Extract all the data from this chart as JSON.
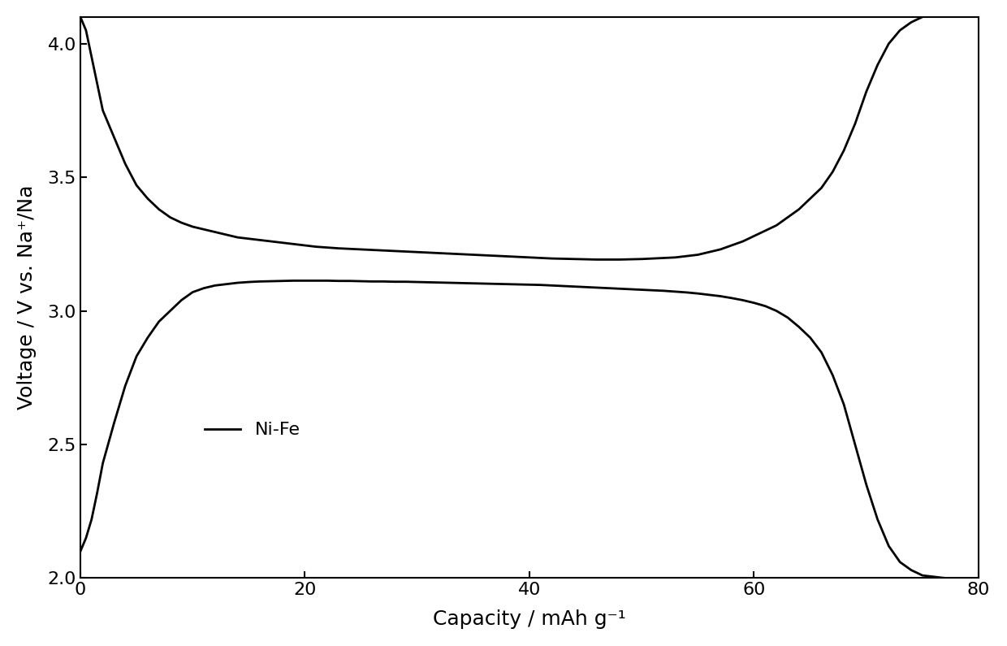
{
  "title": "",
  "xlabel": "Capacity / mAh g⁻¹",
  "ylabel": "Voltage / V vs. Na⁺/Na",
  "xlim": [
    0,
    80
  ],
  "ylim": [
    2.0,
    4.1
  ],
  "yticks": [
    2.0,
    2.5,
    3.0,
    3.5,
    4.0
  ],
  "xticks": [
    0,
    20,
    40,
    60,
    80
  ],
  "legend_label": "Ni-Fe",
  "line_color": "#000000",
  "line_width": 2.0,
  "background_color": "#ffffff",
  "charge_curve": {
    "x": [
      0,
      0.5,
      1,
      1.5,
      2,
      3,
      4,
      5,
      6,
      7,
      8,
      9,
      10,
      11,
      12,
      13,
      14,
      15,
      16,
      17,
      18,
      19,
      20,
      21,
      22,
      23,
      24,
      25,
      26,
      27,
      28,
      29,
      30,
      31,
      32,
      33,
      34,
      35,
      36,
      37,
      38,
      39,
      40,
      41,
      42,
      43,
      44,
      45,
      46,
      47,
      48,
      49,
      50,
      51,
      52,
      53,
      54,
      55,
      56,
      57,
      58,
      59,
      60,
      61,
      62,
      63,
      64,
      65,
      66,
      67,
      68,
      69,
      70,
      71,
      72,
      73,
      74,
      75,
      76,
      77,
      77.5
    ],
    "y": [
      4.1,
      4.05,
      3.95,
      3.85,
      3.75,
      3.65,
      3.55,
      3.47,
      3.42,
      3.38,
      3.35,
      3.33,
      3.315,
      3.305,
      3.295,
      3.285,
      3.275,
      3.27,
      3.265,
      3.26,
      3.255,
      3.25,
      3.245,
      3.24,
      3.237,
      3.234,
      3.232,
      3.23,
      3.228,
      3.226,
      3.224,
      3.222,
      3.22,
      3.218,
      3.216,
      3.214,
      3.212,
      3.21,
      3.208,
      3.206,
      3.204,
      3.202,
      3.2,
      3.198,
      3.196,
      3.195,
      3.194,
      3.193,
      3.192,
      3.192,
      3.192,
      3.193,
      3.194,
      3.196,
      3.198,
      3.2,
      3.205,
      3.21,
      3.22,
      3.23,
      3.245,
      3.26,
      3.28,
      3.3,
      3.32,
      3.35,
      3.38,
      3.42,
      3.46,
      3.52,
      3.6,
      3.7,
      3.82,
      3.92,
      4.0,
      4.05,
      4.08,
      4.1,
      4.11,
      4.11,
      4.11
    ]
  },
  "discharge_curve": {
    "x": [
      0,
      0.5,
      1,
      1.5,
      2,
      3,
      4,
      5,
      6,
      7,
      8,
      9,
      10,
      11,
      12,
      13,
      14,
      15,
      16,
      17,
      18,
      19,
      20,
      21,
      22,
      23,
      24,
      25,
      26,
      27,
      28,
      29,
      30,
      31,
      32,
      33,
      34,
      35,
      36,
      37,
      38,
      39,
      40,
      41,
      42,
      43,
      44,
      45,
      46,
      47,
      48,
      49,
      50,
      51,
      52,
      53,
      54,
      55,
      56,
      57,
      58,
      59,
      60,
      61,
      62,
      63,
      64,
      65,
      66,
      67,
      68,
      69,
      70,
      71,
      72,
      73,
      74,
      75,
      76,
      77,
      77.5
    ],
    "y": [
      2.1,
      2.15,
      2.22,
      2.32,
      2.43,
      2.58,
      2.72,
      2.83,
      2.9,
      2.96,
      3.0,
      3.04,
      3.07,
      3.085,
      3.095,
      3.1,
      3.105,
      3.108,
      3.11,
      3.111,
      3.112,
      3.113,
      3.113,
      3.113,
      3.113,
      3.112,
      3.112,
      3.111,
      3.11,
      3.11,
      3.109,
      3.109,
      3.108,
      3.107,
      3.106,
      3.105,
      3.104,
      3.103,
      3.102,
      3.101,
      3.1,
      3.099,
      3.098,
      3.097,
      3.095,
      3.093,
      3.091,
      3.089,
      3.087,
      3.085,
      3.083,
      3.081,
      3.079,
      3.077,
      3.075,
      3.072,
      3.069,
      3.065,
      3.06,
      3.055,
      3.048,
      3.04,
      3.03,
      3.018,
      3.0,
      2.975,
      2.94,
      2.9,
      2.845,
      2.76,
      2.65,
      2.5,
      2.35,
      2.22,
      2.12,
      2.06,
      2.03,
      2.01,
      2.005,
      2.0,
      2.0
    ]
  }
}
